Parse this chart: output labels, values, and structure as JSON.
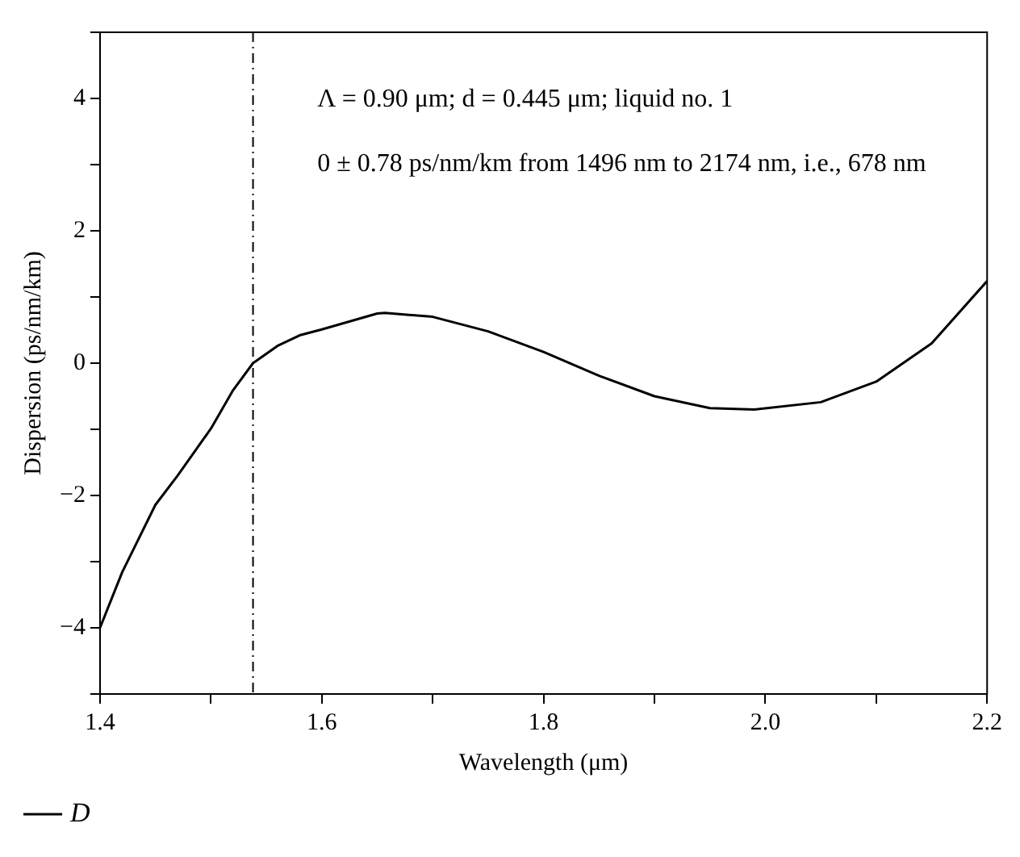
{
  "chart_data": {
    "type": "line",
    "xlabel": "Wavelength (μm)",
    "ylabel": "Dispersion (ps/nm/km)",
    "annotations": [
      "Λ = 0.90 μm; d = 0.445 μm; liquid no. 1",
      "0 ± 0.78 ps/nm/km from 1496 nm to 2174 nm, i.e., 678 nm"
    ],
    "xlim": [
      1.4,
      2.2
    ],
    "ylim": [
      -5,
      5
    ],
    "xticks": [
      1.4,
      {
        "value": 1.5,
        "label": null
      },
      1.6,
      {
        "value": 1.7,
        "label": null
      },
      1.8,
      {
        "value": 1.9,
        "label": null
      },
      {
        "value": 2,
        "label": "2.0"
      },
      {
        "value": 2.1,
        "label": null
      },
      2.2
    ],
    "yticks": [
      {
        "value": -5,
        "label": null
      },
      {
        "value": -4,
        "label": "−4"
      },
      {
        "value": -3,
        "label": null
      },
      {
        "value": -2,
        "label": "−2"
      },
      {
        "value": -1,
        "label": null
      },
      0,
      {
        "value": 1,
        "label": null
      },
      2,
      {
        "value": 3,
        "label": null
      },
      4,
      {
        "value": 5,
        "label": null
      }
    ],
    "ref_lines": [
      {
        "axis": "x",
        "value": 1.538,
        "color": "#000000",
        "line_style": "dashed"
      }
    ],
    "legend": "bottom left",
    "marker": "none",
    "line_style": "solid",
    "series": [
      {
        "name": "D",
        "color": "#000000",
        "x": [
          1.4,
          1.42,
          1.45,
          1.47,
          1.5,
          1.52,
          1.538,
          1.56,
          1.58,
          1.6,
          1.65,
          1.657,
          1.7,
          1.75,
          1.8,
          1.85,
          1.9,
          1.95,
          1.99,
          2.05,
          2.1,
          2.15,
          2.2
        ],
        "values": [
          -4,
          -3.16,
          -2.14,
          -1.7,
          -0.99,
          -0.41,
          0,
          0.26,
          0.42,
          0.51,
          0.75,
          0.76,
          0.7,
          0.48,
          0.17,
          -0.19,
          -0.5,
          -0.68,
          -0.7,
          -0.59,
          -0.28,
          0.3,
          1.24
        ]
      }
    ]
  }
}
